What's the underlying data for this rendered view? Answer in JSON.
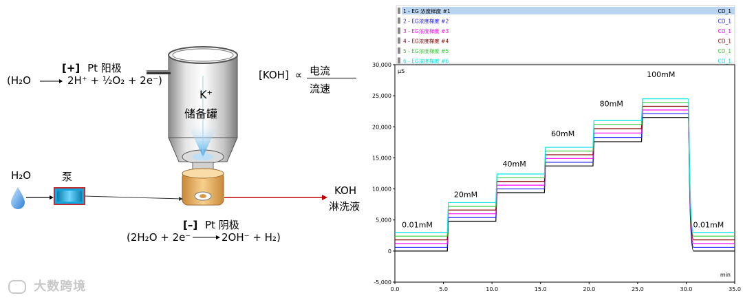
{
  "diagram": {
    "anode": {
      "sign": "[+]",
      "label": "Pt 阳极",
      "reactant": "(H₂O",
      "products": "2H⁺ + ½O₂ + 2e⁻)"
    },
    "reservoir": {
      "ion": "K⁺",
      "label": "储备罐"
    },
    "koh_formula": {
      "lhs": "[KOH]",
      "symbol": "∝",
      "numerator": "电流",
      "denominator": "流速"
    },
    "water": {
      "label": "H₂O"
    },
    "pump": {
      "label": "泵"
    },
    "output": {
      "line1": "KOH",
      "line2": "淋洗液"
    },
    "cathode": {
      "sign": "[–]",
      "label": "Pt 阴极",
      "reactants": "(2H₂O + 2e⁻",
      "products": "2OH⁻ + H₂)"
    },
    "watermark": "大数跨境"
  },
  "chart_data": {
    "type": "line",
    "x_unit": "min",
    "y_unit": "µS",
    "xlim": [
      0,
      35
    ],
    "ylim": [
      -5000,
      30000
    ],
    "x_ticks": [
      "0.0",
      "5.0",
      "10.0",
      "15.0",
      "20.0",
      "25.0",
      "30.0",
      "35.0"
    ],
    "y_ticks": [
      "-5,000",
      "0",
      "5,000",
      "10,000",
      "15,000",
      "20,000",
      "25,000",
      "30,000"
    ],
    "step_labels": [
      {
        "text": "0.01mM",
        "x": 2.3,
        "y": 3800
      },
      {
        "text": "20mM",
        "x": 7.3,
        "y": 8700
      },
      {
        "text": "40mM",
        "x": 12.3,
        "y": 13600
      },
      {
        "text": "60mM",
        "x": 17.3,
        "y": 18500
      },
      {
        "text": "80mM",
        "x": 22.3,
        "y": 23300
      },
      {
        "text": "100mM",
        "x": 27.4,
        "y": 28000
      },
      {
        "text": "0.01mM",
        "x": 32.3,
        "y": 3800
      }
    ],
    "steps": [
      {
        "start": 0,
        "end": 5.4,
        "level": [
          0,
          600,
          1200,
          1800,
          2400,
          3000
        ]
      },
      {
        "start": 5.4,
        "end": 10.4,
        "level": [
          4800,
          5400,
          6000,
          6600,
          7200,
          7800
        ]
      },
      {
        "start": 10.4,
        "end": 15.4,
        "level": [
          9400,
          10000,
          10600,
          11200,
          11800,
          12400
        ]
      },
      {
        "start": 15.4,
        "end": 20.4,
        "level": [
          13700,
          14300,
          14900,
          15500,
          16100,
          16700
        ]
      },
      {
        "start": 20.4,
        "end": 25.4,
        "level": [
          17600,
          18300,
          19000,
          19700,
          20400,
          21000
        ]
      },
      {
        "start": 25.4,
        "end": 30.2,
        "level": [
          21500,
          22100,
          22700,
          23300,
          23900,
          24500
        ]
      },
      {
        "start": 30.2,
        "end": 35,
        "level": [
          0,
          600,
          1200,
          1800,
          2400,
          3000
        ]
      }
    ],
    "series": [
      {
        "name": "1 - EG 浓度梯度 #1",
        "tag": "CD_1",
        "color": "#000000"
      },
      {
        "name": "2 - EG浓度梯度 #2",
        "tag": "CD_1",
        "color": "#1a1aff"
      },
      {
        "name": "3 - EG浓度梯度 #3",
        "tag": "CD_1",
        "color": "#ff00ff"
      },
      {
        "name": "4 - EG浓度梯度 #4",
        "tag": "CD_1",
        "color": "#8b0000"
      },
      {
        "name": "5 - EG浓度梯度 #5",
        "tag": "CD_1",
        "color": "#33cc33"
      },
      {
        "name": "6 - EG浓度梯度 #6",
        "tag": "CD_1",
        "color": "#00e5e5"
      }
    ]
  }
}
